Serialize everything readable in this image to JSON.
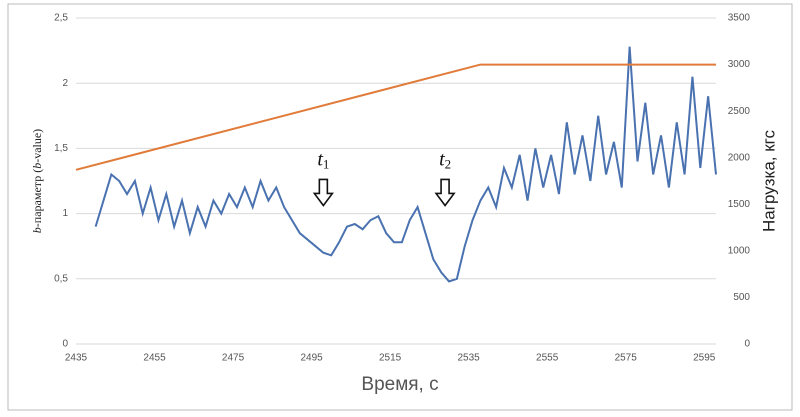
{
  "chart_data": {
    "type": "line",
    "x_label": "Время, с",
    "y_label": {
      "italic": "b",
      "text": "-параметр (",
      "italic2": "b",
      "text2": "-value)"
    },
    "y2_label": "Нагрузка, кгс",
    "xlim": [
      2435,
      2598
    ],
    "xticks": [
      2435,
      2455,
      2475,
      2495,
      2515,
      2535,
      2555,
      2575,
      2595
    ],
    "ylim": [
      0,
      2.5
    ],
    "yticks": [
      0,
      {
        "value": 0.5,
        "label": "0,5"
      },
      1,
      {
        "value": 1.5,
        "label": "1,5"
      },
      2,
      {
        "value": 2.5,
        "label": "2,5"
      }
    ],
    "y2lim": [
      0,
      3500
    ],
    "y2ticks": [
      0,
      500,
      1000,
      1500,
      2000,
      2500,
      3000,
      3500
    ],
    "grid": true,
    "series": [
      {
        "color": "#4a72b0",
        "x": [
          2440,
          2442,
          2444,
          2446,
          2448,
          2450,
          2452,
          2454,
          2456,
          2458,
          2460,
          2462,
          2464,
          2466,
          2468,
          2470,
          2472,
          2474,
          2476,
          2478,
          2480,
          2482,
          2484,
          2486,
          2488,
          2490,
          2492,
          2494,
          2496,
          2498,
          2500,
          2502,
          2504,
          2506,
          2508,
          2510,
          2512,
          2514,
          2516,
          2518,
          2520,
          2522,
          2524,
          2526,
          2528,
          2530,
          2532,
          2534,
          2536,
          2538,
          2540,
          2542,
          2544,
          2546,
          2548,
          2550,
          2552,
          2554,
          2556,
          2558,
          2560,
          2562,
          2564,
          2566,
          2568,
          2570,
          2572,
          2574,
          2576,
          2578,
          2580,
          2582,
          2584,
          2586,
          2588,
          2590,
          2592,
          2594,
          2596,
          2598
        ],
        "values": [
          0.9,
          1.1,
          1.3,
          1.25,
          1.15,
          1.25,
          1.0,
          1.2,
          0.95,
          1.15,
          0.9,
          1.1,
          0.85,
          1.05,
          0.9,
          1.1,
          1.0,
          1.15,
          1.05,
          1.2,
          1.05,
          1.25,
          1.1,
          1.2,
          1.05,
          0.95,
          0.85,
          0.8,
          0.75,
          0.7,
          0.68,
          0.78,
          0.9,
          0.92,
          0.88,
          0.95,
          0.98,
          0.85,
          0.78,
          0.78,
          0.95,
          1.05,
          0.85,
          0.65,
          0.55,
          0.48,
          0.5,
          0.75,
          0.95,
          1.1,
          1.2,
          1.05,
          1.35,
          1.2,
          1.45,
          1.1,
          1.5,
          1.2,
          1.45,
          1.15,
          1.7,
          1.3,
          1.6,
          1.25,
          1.75,
          1.3,
          1.55,
          1.2,
          2.28,
          1.4,
          1.85,
          1.3,
          1.6,
          1.2,
          1.7,
          1.3,
          2.05,
          1.35,
          1.9,
          1.3
        ]
      },
      {
        "color": "#e07b39",
        "axis": "y2",
        "x": [
          2435,
          2538,
          2598
        ],
        "values": [
          1870,
          3000,
          3000
        ]
      }
    ],
    "annotations": [
      {
        "text": "t",
        "sub": "1",
        "x": 2498,
        "y": 1.3
      },
      {
        "text": "t",
        "sub": "2",
        "x": 2529,
        "y": 1.3
      }
    ]
  }
}
